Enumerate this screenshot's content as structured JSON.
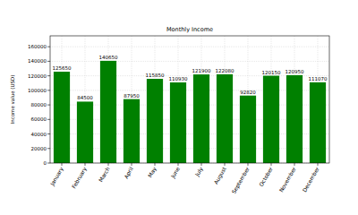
{
  "chart_data": {
    "type": "bar",
    "title": "Monthly Income",
    "y_label": "Income value (USD)",
    "categories": [
      "January",
      "February",
      "March",
      "April",
      "May",
      "June",
      "July",
      "August",
      "September",
      "October",
      "November",
      "December"
    ],
    "values": [
      125650,
      84500,
      140650,
      87950,
      115850,
      110930,
      121900,
      122080,
      92820,
      120150,
      120950,
      111070
    ],
    "color": "#008000",
    "ylim": [
      0,
      175000
    ],
    "yticks": [
      0,
      20000,
      40000,
      60000,
      80000,
      100000,
      120000,
      140000,
      160000
    ],
    "grid": true,
    "data_labels": true
  }
}
